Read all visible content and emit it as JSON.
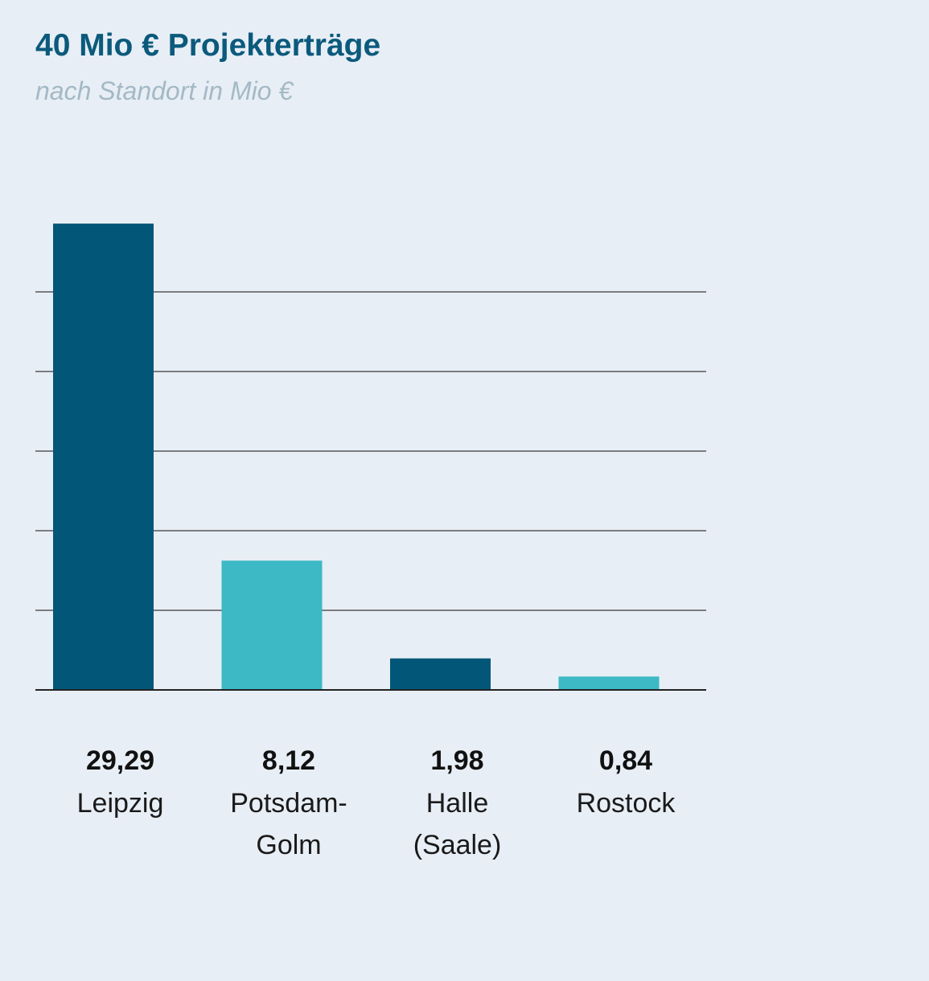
{
  "header": {
    "title": "40 Mio € Projekterträge",
    "subtitle": "nach Standort in Mio €"
  },
  "colors": {
    "background": "#e8eef5",
    "title": "#0b5a7c",
    "subtitle": "#a3b9c6",
    "bar_dark": "#025778",
    "bar_light": "#3cb9c5",
    "gridline": "#3a3a3a",
    "baseline": "#222222"
  },
  "chart_data": {
    "type": "bar",
    "title": "40 Mio € Projekterträge",
    "subtitle": "nach Standort in Mio €",
    "categories": [
      [
        "Leipzig"
      ],
      [
        "Potsdam-",
        "Golm"
      ],
      [
        "Halle",
        "(Saale)"
      ],
      [
        "Rostock"
      ]
    ],
    "values": [
      29.29,
      8.12,
      1.98,
      0.84
    ],
    "value_labels": [
      "29,29",
      "8,12",
      "1,98",
      "0,84"
    ],
    "bar_colors": [
      "#025778",
      "#3cb9c5",
      "#025778",
      "#3cb9c5"
    ],
    "ylim": [
      0,
      30
    ],
    "gridlines": [
      5,
      10,
      15,
      20,
      25
    ],
    "grid": true,
    "axis_tick_labels": false
  }
}
